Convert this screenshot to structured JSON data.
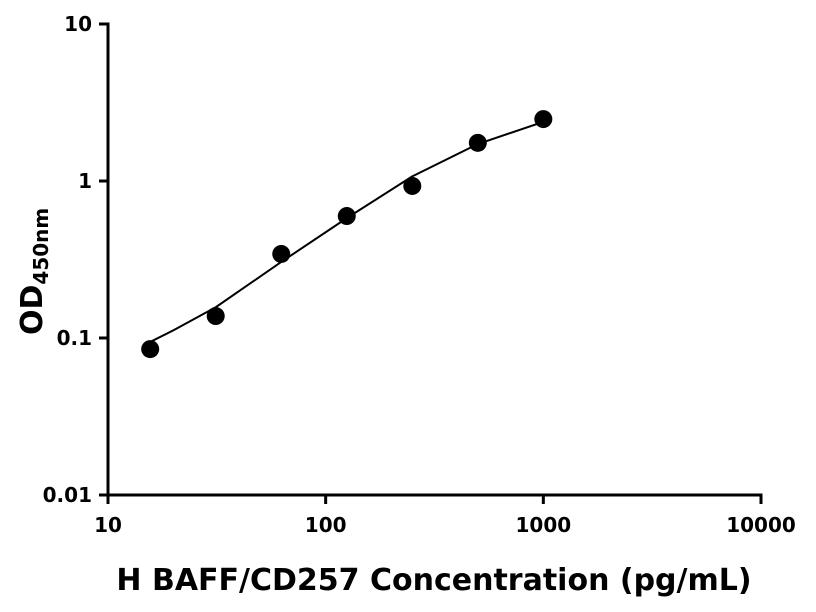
{
  "chart_data": {
    "type": "scatter",
    "xlabel": "H BAFF/CD257 Concentration (pg/mL)",
    "ylabel": "OD",
    "ylabel_sub": "450nm",
    "xscale": "log",
    "yscale": "log",
    "xlim": [
      10,
      10000
    ],
    "ylim": [
      0.01,
      10
    ],
    "xticks": [
      10,
      100,
      1000,
      10000
    ],
    "yticks": [
      0.01,
      0.1,
      1,
      10
    ],
    "series": [
      {
        "color": "#000000",
        "x": [
          15.625,
          31.25,
          62.5,
          125,
          250,
          500,
          1000
        ],
        "values": [
          0.085,
          0.138,
          0.343,
          0.598,
          0.93,
          1.75,
          2.48
        ]
      },
      {
        "type": "line",
        "color": "#000000",
        "x": [
          15.3,
          20,
          31.25,
          62.5,
          125,
          250,
          500,
          1000
        ],
        "values": [
          0.093,
          0.112,
          0.157,
          0.305,
          0.58,
          1.07,
          1.72,
          2.38
        ]
      }
    ]
  }
}
